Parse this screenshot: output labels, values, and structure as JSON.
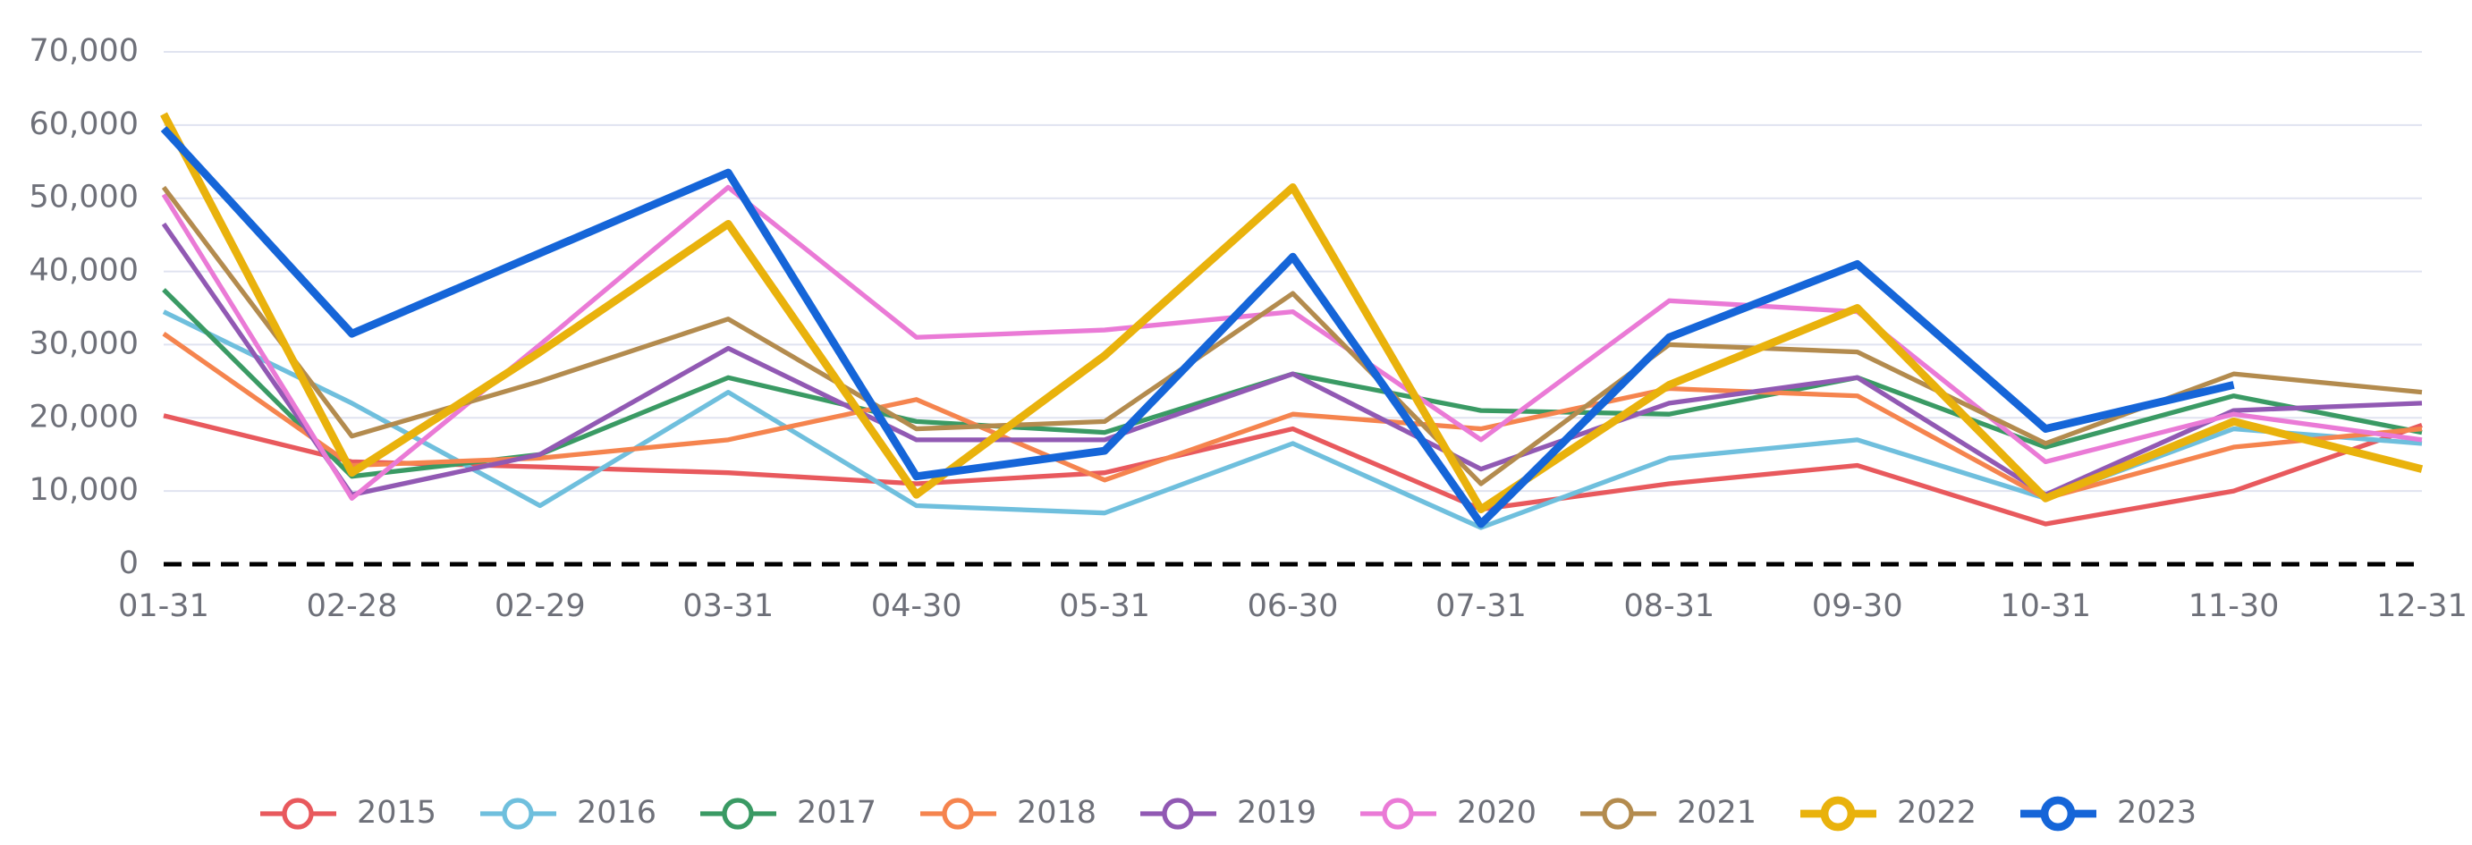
{
  "chart_data": {
    "type": "line",
    "categories": [
      "01-31",
      "02-28",
      "02-29",
      "03-31",
      "04-30",
      "05-31",
      "06-30",
      "07-31",
      "08-31",
      "09-30",
      "10-31",
      "11-30",
      "12-31"
    ],
    "series": [
      {
        "name": "2015",
        "color": "#e8595d",
        "line_width": 3,
        "values": [
          20300,
          14000,
          13300,
          12500,
          11000,
          12500,
          18500,
          7500,
          11000,
          13500,
          5500,
          10000,
          19000
        ]
      },
      {
        "name": "2016",
        "color": "#6fbfdd",
        "line_width": 3,
        "values": [
          34500,
          22000,
          8000,
          23500,
          8000,
          7000,
          16500,
          5000,
          14500,
          17000,
          9000,
          18500,
          16500
        ]
      },
      {
        "name": "2017",
        "color": "#3a9a64",
        "line_width": 3,
        "values": [
          37500,
          12000,
          15000,
          25500,
          19500,
          18000,
          26000,
          21000,
          20500,
          25500,
          16000,
          23000,
          18000
        ]
      },
      {
        "name": "2018",
        "color": "#f5844e",
        "line_width": 3,
        "values": [
          31500,
          13500,
          14500,
          17000,
          22500,
          11500,
          20500,
          18500,
          24000,
          23000,
          9000,
          16000,
          18500
        ]
      },
      {
        "name": "2019",
        "color": "#9159b3",
        "line_width": 3,
        "values": [
          46500,
          9500,
          15000,
          29500,
          17000,
          17000,
          26000,
          13000,
          22000,
          25500,
          9500,
          21000,
          22000
        ]
      },
      {
        "name": "2020",
        "color": "#ea7ad6",
        "line_width": 3,
        "values": [
          50500,
          9000,
          30000,
          51500,
          31000,
          32000,
          34500,
          17000,
          36000,
          34500,
          14000,
          20500,
          17000
        ]
      },
      {
        "name": "2021",
        "color": "#b38b4e",
        "line_width": 3,
        "values": [
          51500,
          17500,
          25000,
          33500,
          18500,
          19500,
          37000,
          11000,
          30000,
          29000,
          16500,
          26000,
          23500
        ]
      },
      {
        "name": "2022",
        "color": "#e9b20c",
        "line_width": 5,
        "values": [
          61500,
          12500,
          29000,
          46500,
          9500,
          28500,
          51500,
          7500,
          24500,
          35000,
          9000,
          19500,
          13000
        ]
      },
      {
        "name": "2023",
        "color": "#1565d8",
        "line_width": 5,
        "values": [
          59500,
          31500,
          42500,
          53500,
          12000,
          15500,
          42000,
          5500,
          31000,
          41000,
          18500,
          24500,
          null
        ]
      }
    ],
    "ylim": [
      0,
      70000
    ],
    "yticks": [
      0,
      {
        "value": 10000,
        "label": "10,000"
      },
      {
        "value": 20000,
        "label": "20,000"
      },
      {
        "value": 30000,
        "label": "30,000"
      },
      {
        "value": 40000,
        "label": "40,000"
      },
      {
        "value": 50000,
        "label": "50,000"
      },
      {
        "value": 60000,
        "label": "60,000"
      },
      {
        "value": 70000,
        "label": "70,000"
      }
    ],
    "grid": true,
    "legend": "bottom"
  }
}
